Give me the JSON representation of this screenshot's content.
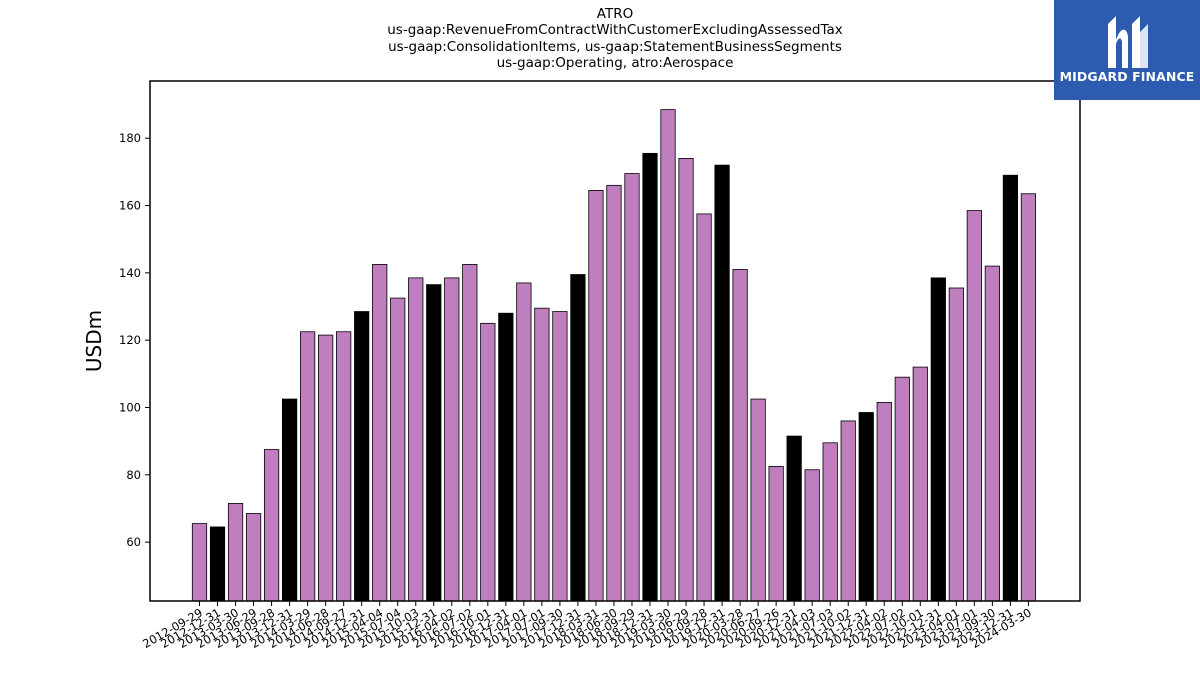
{
  "chart_data": {
    "type": "bar",
    "title_lines": [
      "ATRO",
      "us-gaap:RevenueFromContractWithCustomerExcludingAssessedTax",
      "us-gaap:ConsolidationItems, us-gaap:StatementBusinessSegments",
      "us-gaap:Operating, atro:Aerospace"
    ],
    "ylabel": "USDm",
    "xlabel": "",
    "ylim": [
      42.5,
      197
    ],
    "yticks": [
      60,
      80,
      100,
      120,
      140,
      160,
      180
    ],
    "grid": false,
    "colors": {
      "quarter": "#bf7fbf",
      "annual": "#000000",
      "edge": "#000000"
    },
    "categories": [
      "2012-09-29",
      "2012-12-31",
      "2013-03-30",
      "2013-06-29",
      "2013-09-28",
      "2013-12-31",
      "2014-03-29",
      "2014-06-28",
      "2014-09-27",
      "2014-12-31",
      "2015-04-04",
      "2015-07-04",
      "2015-10-03",
      "2015-12-31",
      "2016-04-02",
      "2016-07-02",
      "2016-10-01",
      "2016-12-31",
      "2017-04-01",
      "2017-07-01",
      "2017-09-30",
      "2017-12-31",
      "2018-03-31",
      "2018-06-30",
      "2018-09-29",
      "2018-12-31",
      "2019-03-30",
      "2019-06-29",
      "2019-09-28",
      "2019-12-31",
      "2020-03-28",
      "2020-06-27",
      "2020-09-26",
      "2020-12-31",
      "2021-04-03",
      "2021-07-03",
      "2021-10-02",
      "2021-12-31",
      "2022-04-02",
      "2022-07-02",
      "2022-10-01",
      "2022-12-31",
      "2023-04-01",
      "2023-07-01",
      "2023-09-30",
      "2023-12-31",
      "2024-03-30"
    ],
    "values": [
      65.5,
      64.5,
      71.5,
      68.5,
      87.5,
      102.5,
      122.5,
      121.5,
      122.5,
      128.5,
      142.5,
      132.5,
      138.5,
      136.5,
      138.5,
      142.5,
      125.0,
      128.0,
      137.0,
      129.5,
      128.5,
      139.5,
      164.5,
      166.0,
      169.5,
      175.5,
      188.5,
      174.0,
      157.5,
      172.0,
      141.0,
      102.5,
      82.5,
      91.5,
      81.5,
      89.5,
      96.0,
      98.5,
      101.5,
      109.0,
      112.0,
      138.5,
      135.5,
      158.5,
      142.0,
      169.0,
      163.5
    ],
    "is_annual": [
      false,
      true,
      false,
      false,
      false,
      true,
      false,
      false,
      false,
      true,
      false,
      false,
      false,
      true,
      false,
      false,
      false,
      true,
      false,
      false,
      false,
      true,
      false,
      false,
      false,
      true,
      false,
      false,
      false,
      true,
      false,
      false,
      false,
      true,
      false,
      false,
      false,
      true,
      false,
      false,
      false,
      true,
      false,
      false,
      false,
      true,
      false
    ]
  },
  "logo": {
    "text": "MIDGARD FINANCE",
    "icon": "midgard-logo-icon"
  }
}
